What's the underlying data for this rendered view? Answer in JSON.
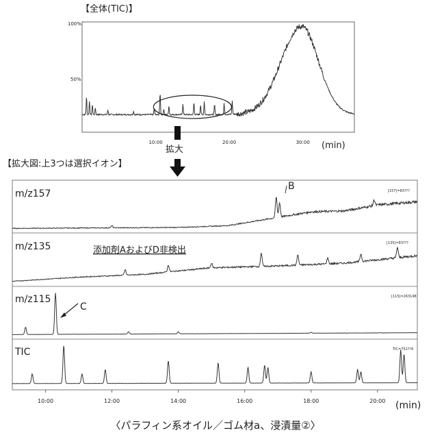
{
  "top": {
    "heading": "【全体(TIC)】",
    "y_ticks": [
      "100%",
      "50%"
    ],
    "x_ticks": [
      "10:00",
      "20:00",
      "30:00"
    ],
    "x_unit": "(min)"
  },
  "zoom": {
    "label": "拡大",
    "heading": "【拡大図:上3つは選択イオン】"
  },
  "panels": [
    {
      "ion": "m/z157",
      "counter": "[157]=83???"
    },
    {
      "ion": "m/z135",
      "counter": "[135]=83???",
      "note": "添加剤AおよびD非検出"
    },
    {
      "ion": "m/z115",
      "counter": "[115]=263148"
    },
    {
      "ion": "TIC",
      "counter": "TIC=752??4"
    }
  ],
  "annotations": {
    "B": "B",
    "C": "C"
  },
  "bottom_axis": {
    "ticks": [
      "10:00",
      "12:00",
      "14:00",
      "16:00",
      "18:00",
      "20:00"
    ],
    "unit": "(min)"
  },
  "caption": "〈パラフィン系オイル／ゴム材a、浸漬量②〉",
  "chart_data": [
    {
      "type": "line",
      "title": "【全体(TIC)】",
      "xlabel": "(min)",
      "ylabel": "",
      "xlim": [
        0,
        37
      ],
      "ylim": [
        0,
        100
      ],
      "x_ticks": [
        "10:00",
        "20:00",
        "30:00"
      ],
      "y_ticks": [
        "100%",
        "50%"
      ],
      "baseline": 16,
      "peaks": [
        {
          "x": 0.6,
          "y": 32
        },
        {
          "x": 1.0,
          "y": 28
        },
        {
          "x": 1.4,
          "y": 25
        },
        {
          "x": 1.8,
          "y": 22
        },
        {
          "x": 3.5,
          "y": 20
        },
        {
          "x": 7.0,
          "y": 19
        },
        {
          "x": 9.8,
          "y": 22
        },
        {
          "x": 10.6,
          "y": 36
        },
        {
          "x": 11.1,
          "y": 21
        },
        {
          "x": 11.8,
          "y": 24
        },
        {
          "x": 13.7,
          "y": 26
        },
        {
          "x": 15.2,
          "y": 27
        },
        {
          "x": 16.1,
          "y": 25
        },
        {
          "x": 16.6,
          "y": 28
        },
        {
          "x": 18.0,
          "y": 25
        },
        {
          "x": 19.3,
          "y": 26
        },
        {
          "x": 20.4,
          "y": 28
        }
      ],
      "hump": {
        "center": 29.8,
        "peak": 96,
        "rise_width": 3.9,
        "fall_width": 3.3
      },
      "highlighted_range": [
        10,
        20
      ]
    },
    {
      "type": "line",
      "title": "m/z157",
      "xlim": [
        9,
        21.2
      ],
      "ylim": [
        0,
        100
      ],
      "series": [
        {
          "name": "m/z157",
          "trend": [
            [
              9,
              4
            ],
            [
              14,
              6
            ],
            [
              15.5,
              10
            ],
            [
              16.5,
              22
            ],
            [
              18,
              40
            ],
            [
              19,
              42
            ],
            [
              20,
              55
            ],
            [
              21.2,
              62
            ]
          ],
          "peaks": [
            {
              "x": 12.0,
              "y": 10
            },
            {
              "x": 16.95,
              "y": 72
            },
            {
              "x": 17.05,
              "y": 60
            },
            {
              "x": 19.9,
              "y": 66
            }
          ]
        }
      ]
    },
    {
      "type": "line",
      "title": "m/z135",
      "xlim": [
        9,
        21.2
      ],
      "ylim": [
        0,
        100
      ],
      "series": [
        {
          "name": "m/z135",
          "trend": [
            [
              9,
              5
            ],
            [
              11,
              14
            ],
            [
              13,
              20
            ],
            [
              13.8,
              26
            ],
            [
              15,
              34
            ],
            [
              17,
              38
            ],
            [
              19,
              44
            ],
            [
              21.2,
              60
            ]
          ],
          "peaks": [
            {
              "x": 12.4,
              "y": 30
            },
            {
              "x": 13.7,
              "y": 40
            },
            {
              "x": 15.0,
              "y": 44
            },
            {
              "x": 16.5,
              "y": 66
            },
            {
              "x": 17.6,
              "y": 62
            },
            {
              "x": 18.5,
              "y": 55
            },
            {
              "x": 19.5,
              "y": 64
            },
            {
              "x": 20.6,
              "y": 78
            }
          ]
        }
      ]
    },
    {
      "type": "line",
      "title": "m/z115",
      "xlim": [
        9,
        21.2
      ],
      "ylim": [
        0,
        100
      ],
      "series": [
        {
          "name": "m/z115",
          "trend": [
            [
              9,
              4
            ],
            [
              21.2,
              8
            ]
          ],
          "peaks": [
            {
              "x": 9.4,
              "y": 20
            },
            {
              "x": 10.3,
              "y": 95
            },
            {
              "x": 12.5,
              "y": 10
            },
            {
              "x": 14.0,
              "y": 10
            },
            {
              "x": 18.0,
              "y": 9
            }
          ]
        }
      ]
    },
    {
      "type": "line",
      "title": "TIC",
      "xlim": [
        9,
        21.2
      ],
      "ylim": [
        0,
        100
      ],
      "series": [
        {
          "name": "TIC",
          "trend": [
            [
              9,
              8
            ],
            [
              21.2,
              10
            ]
          ],
          "peaks": [
            {
              "x": 9.6,
              "y": 30
            },
            {
              "x": 10.55,
              "y": 95
            },
            {
              "x": 11.1,
              "y": 30
            },
            {
              "x": 11.8,
              "y": 40
            },
            {
              "x": 13.7,
              "y": 60
            },
            {
              "x": 15.2,
              "y": 55
            },
            {
              "x": 16.1,
              "y": 45
            },
            {
              "x": 16.6,
              "y": 50
            },
            {
              "x": 16.7,
              "y": 45
            },
            {
              "x": 18.0,
              "y": 35
            },
            {
              "x": 19.4,
              "y": 40
            },
            {
              "x": 19.5,
              "y": 35
            },
            {
              "x": 20.7,
              "y": 85
            },
            {
              "x": 20.8,
              "y": 75
            }
          ]
        }
      ]
    }
  ]
}
